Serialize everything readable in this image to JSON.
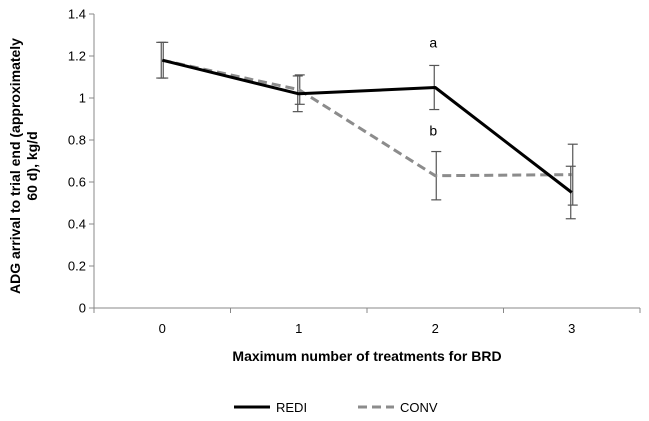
{
  "chart_data": {
    "type": "line",
    "title": "",
    "xlabel": "Maximum number of treatments for BRD",
    "ylabel_lines": [
      "ADG arrival to trial end (approximately",
      "60 d), kg/d"
    ],
    "categories": [
      "0",
      "1",
      "2",
      "3"
    ],
    "ylim": [
      0,
      1.4
    ],
    "yticks": [
      "0",
      "0.2",
      "0.4",
      "0.6",
      "0.8",
      "1",
      "1.2",
      "1.4"
    ],
    "grid": false,
    "legend_position": "bottom",
    "series": [
      {
        "name": "REDI",
        "style": "solid",
        "color": "#000000",
        "values": [
          1.18,
          1.02,
          1.05,
          0.55
        ],
        "error": [
          0.085,
          0.085,
          0.105,
          0.125
        ]
      },
      {
        "name": "CONV",
        "style": "dashed",
        "color": "#8c8c8c",
        "values": [
          1.18,
          1.04,
          0.63,
          0.635
        ],
        "error": [
          0.085,
          0.07,
          0.115,
          0.145
        ]
      }
    ],
    "annotations": [
      {
        "text": "a",
        "x": "2",
        "y": 1.26
      },
      {
        "text": "b",
        "x": "2",
        "y": 0.84
      }
    ]
  }
}
